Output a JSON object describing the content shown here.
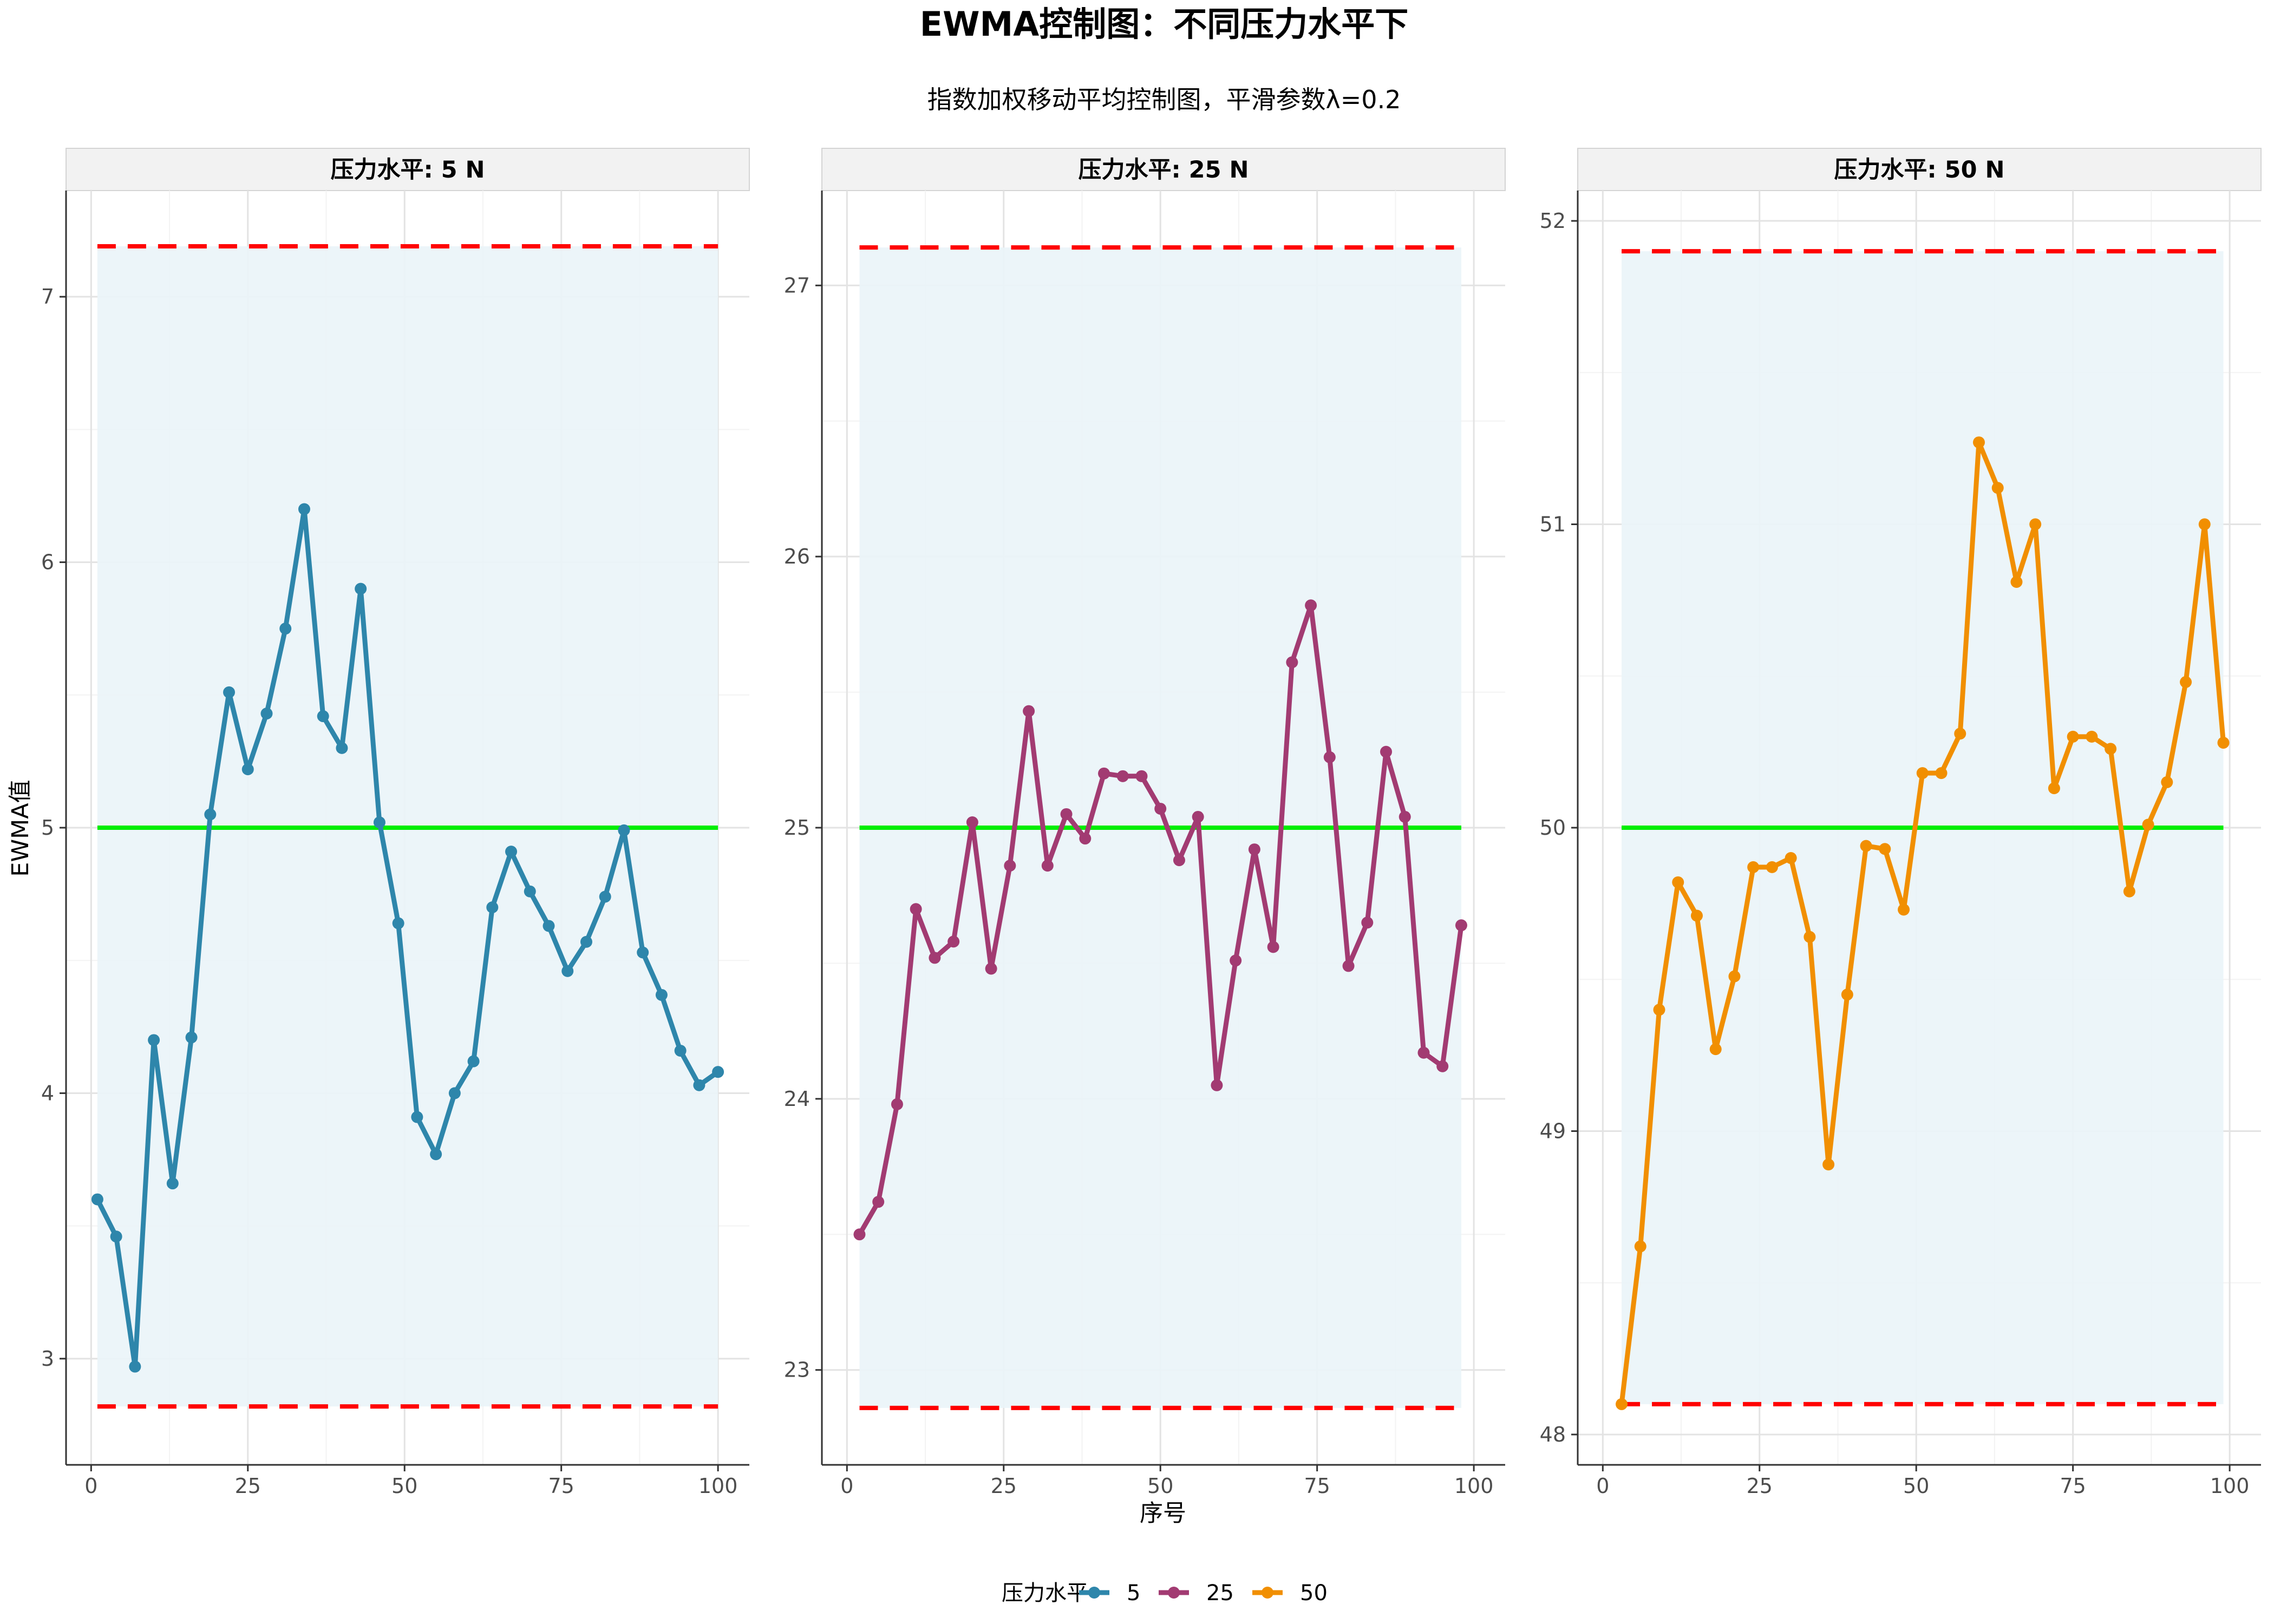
{
  "chart_data": {
    "type": "line",
    "title": "EWMA控制图：不同压力水平下",
    "subtitle": "指数加权移动平均控制图，平滑参数λ=0.2",
    "xlabel": "序号",
    "ylabel": "EWMA值",
    "legend": {
      "title": "压力水平",
      "position": "bottom",
      "items": [
        {
          "label": "5",
          "color": "#2E86AB"
        },
        {
          "label": "25",
          "color": "#A23B72"
        },
        {
          "label": "50",
          "color": "#F18F01"
        }
      ]
    },
    "colors": {
      "center_line": "#00EE00",
      "control_limits": "#FF0000",
      "control_band": "#EAF4F8",
      "strip_background": "#F2F2F2",
      "grid_major": "#E3E3E3",
      "grid_minor": "#F3F3F3"
    },
    "panels": [
      {
        "strip": "压力水平: 5 N",
        "series_name": "5",
        "color": "#2E86AB",
        "xlim": [
          -4,
          105
        ],
        "ylim": [
          2.6,
          7.4
        ],
        "yticks": [
          3,
          4,
          5,
          6,
          7
        ],
        "xticks": [
          0,
          25,
          50,
          75,
          100
        ],
        "center": 5.0,
        "ucl": 7.19,
        "lcl": 2.82,
        "x": [
          1,
          4,
          7,
          10,
          13,
          16,
          19,
          22,
          25,
          28,
          31,
          34,
          37,
          40,
          43,
          46,
          49,
          52,
          55,
          58,
          61,
          64,
          67,
          70,
          73,
          76,
          79,
          82,
          85,
          88,
          91,
          94,
          97,
          100
        ],
        "y": [
          3.6,
          3.46,
          2.97,
          4.2,
          3.66,
          4.21,
          5.05,
          5.51,
          5.22,
          5.43,
          5.75,
          6.2,
          5.42,
          5.3,
          5.9,
          5.02,
          4.64,
          3.91,
          3.77,
          4.0,
          4.12,
          4.7,
          4.91,
          4.76,
          4.63,
          4.46,
          4.57,
          4.74,
          4.99,
          4.53,
          4.37,
          4.16,
          4.03,
          4.08
        ]
      },
      {
        "strip": "压力水平: 25 N",
        "series_name": "25",
        "color": "#A23B72",
        "xlim": [
          -4,
          105
        ],
        "ylim": [
          22.65,
          27.35
        ],
        "yticks": [
          23,
          24,
          25,
          26,
          27
        ],
        "xticks": [
          0,
          25,
          50,
          75,
          100
        ],
        "center": 25.0,
        "ucl": 27.14,
        "lcl": 22.86,
        "x": [
          2,
          5,
          8,
          11,
          14,
          17,
          20,
          23,
          26,
          29,
          32,
          35,
          38,
          41,
          44,
          47,
          50,
          53,
          56,
          59,
          62,
          65,
          68,
          71,
          74,
          77,
          80,
          83,
          86,
          89,
          92,
          95,
          98
        ],
        "y": [
          23.5,
          23.62,
          23.98,
          24.7,
          24.52,
          24.58,
          25.02,
          24.48,
          24.86,
          25.43,
          24.86,
          25.05,
          24.96,
          25.2,
          25.19,
          25.19,
          25.07,
          24.88,
          25.04,
          24.05,
          24.51,
          24.92,
          24.56,
          25.61,
          25.82,
          25.26,
          24.49,
          24.65,
          25.28,
          25.04,
          24.17,
          24.12,
          24.64
        ]
      },
      {
        "strip": "压力水平: 50 N",
        "series_name": "50",
        "color": "#F18F01",
        "xlim": [
          -4,
          105
        ],
        "ylim": [
          47.9,
          52.1
        ],
        "yticks": [
          48,
          49,
          50,
          51,
          52
        ],
        "xticks": [
          0,
          25,
          50,
          75,
          100
        ],
        "center": 50.0,
        "ucl": 51.9,
        "lcl": 48.1,
        "x": [
          3,
          6,
          9,
          12,
          15,
          18,
          21,
          24,
          27,
          30,
          33,
          36,
          39,
          42,
          45,
          48,
          51,
          54,
          57,
          60,
          63,
          66,
          69,
          72,
          75,
          78,
          81,
          84,
          87,
          90,
          93,
          96,
          99
        ],
        "y": [
          48.1,
          48.62,
          49.4,
          49.82,
          49.71,
          49.27,
          49.51,
          49.87,
          49.87,
          49.9,
          49.64,
          48.89,
          49.45,
          49.94,
          49.93,
          49.73,
          50.18,
          50.18,
          50.31,
          51.27,
          51.12,
          50.81,
          51.0,
          50.13,
          50.3,
          50.3,
          50.26,
          49.79,
          50.01,
          50.15,
          50.48,
          51.0,
          50.28
        ]
      }
    ]
  }
}
